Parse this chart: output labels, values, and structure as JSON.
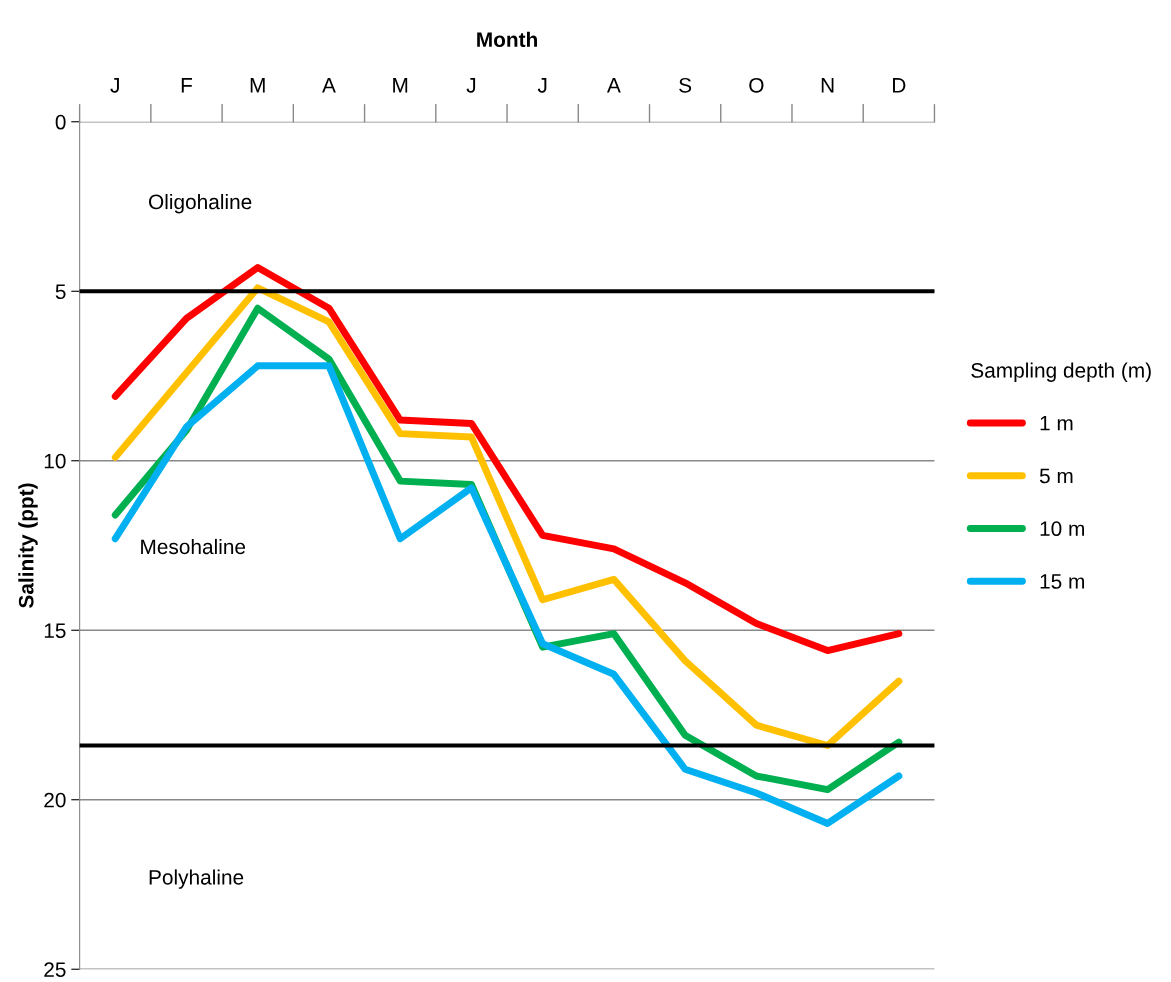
{
  "chart_data": {
    "type": "line",
    "xlabel": "Month",
    "ylabel": "Salinity (ppt)",
    "legend_title": "Sampling depth (m)",
    "categories": [
      "J",
      "F",
      "M",
      "A",
      "M",
      "J",
      "J",
      "A",
      "S",
      "O",
      "N",
      "D"
    ],
    "series": [
      {
        "name": "1 m",
        "color": "#ff0000",
        "values": [
          8.1,
          5.8,
          4.3,
          5.5,
          8.8,
          8.9,
          12.2,
          12.6,
          13.6,
          14.8,
          15.6,
          15.1
        ]
      },
      {
        "name": "5 m",
        "color": "#ffc000",
        "values": [
          9.9,
          7.4,
          4.9,
          5.9,
          9.2,
          9.3,
          14.1,
          13.5,
          15.9,
          17.8,
          18.4,
          16.5
        ]
      },
      {
        "name": "10 m",
        "color": "#00b050",
        "values": [
          11.6,
          9.1,
          5.5,
          7.0,
          10.6,
          10.7,
          15.5,
          15.1,
          18.1,
          19.3,
          19.7,
          18.3
        ]
      },
      {
        "name": "15 m",
        "color": "#00b0f0",
        "values": [
          12.3,
          9.0,
          7.2,
          7.2,
          12.3,
          10.8,
          15.4,
          16.3,
          19.1,
          19.8,
          20.7,
          19.3
        ]
      }
    ],
    "ylim": [
      25,
      0
    ],
    "yticks": [
      0,
      5,
      10,
      15,
      20,
      25
    ],
    "grid": "y",
    "legend": "right",
    "marker": "none",
    "line_style": "solid",
    "ref_lines": [
      {
        "axis": "y",
        "value": 5,
        "color": "#000000"
      },
      {
        "axis": "y",
        "value": 18.4,
        "color": "#000000"
      }
    ],
    "annotations": [
      "Oligohaline",
      "Mesohaline",
      "Polyhaline"
    ]
  }
}
